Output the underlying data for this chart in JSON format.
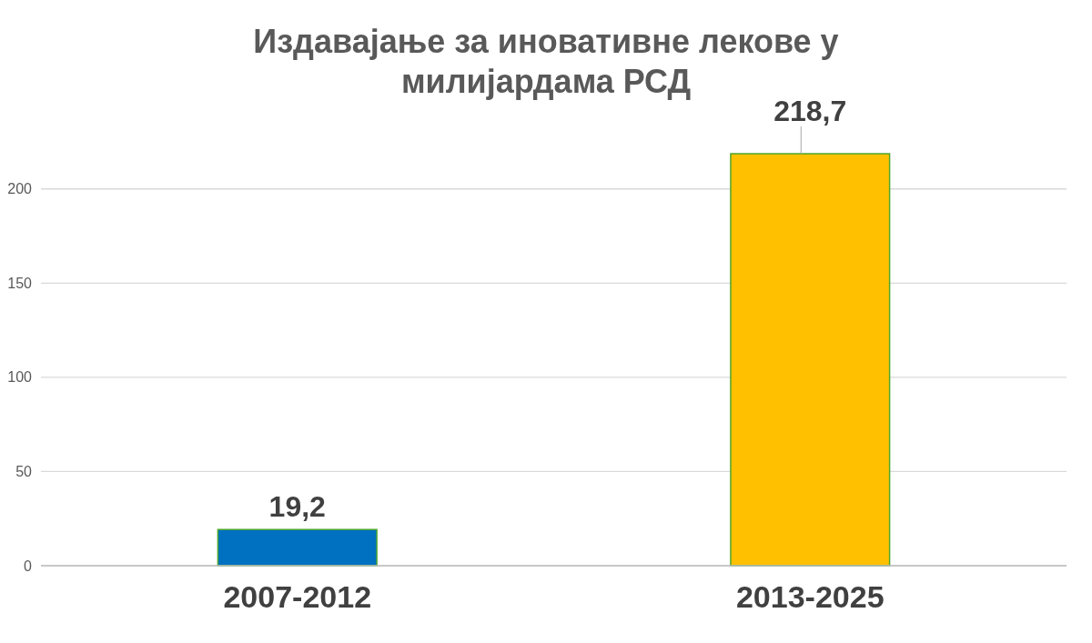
{
  "chart_data": {
    "type": "bar",
    "title": "Издавајање за иновативне лекове у милијардама РСД",
    "categories": [
      "2007-2012",
      "2013-2025"
    ],
    "values": [
      19.2,
      218.7
    ],
    "colors": [
      "#0070c0",
      "#ffc000"
    ],
    "value_labels": [
      "19,2",
      "218,7"
    ],
    "ylim": [
      0,
      218.7
    ],
    "yticks": [
      0,
      50,
      100,
      150,
      200
    ],
    "grid": "y"
  }
}
